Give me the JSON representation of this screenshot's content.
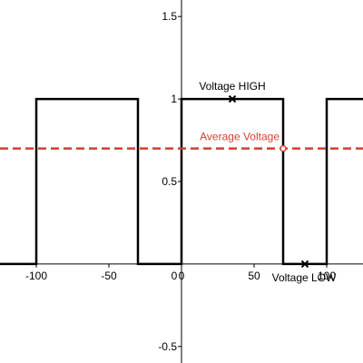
{
  "chart_data": {
    "type": "line",
    "title": "",
    "xlabel": "",
    "ylabel": "",
    "xlim": [
      -125,
      125
    ],
    "ylim": [
      -0.6,
      1.6
    ],
    "grid": false,
    "x_ticks": [
      -100,
      -50,
      0,
      50,
      100
    ],
    "x_tick_labels": [
      "-100",
      "-50",
      "0",
      "50",
      "100"
    ],
    "y_ticks": [
      -0.5,
      0.5,
      1,
      1.5
    ],
    "y_tick_labels": [
      "-0.5",
      "0.5",
      "1",
      "1.5"
    ],
    "series": [
      {
        "color": "#000000",
        "style": "solid",
        "x": [
          -125,
          -100,
          -100,
          -30,
          -30,
          0,
          0,
          70,
          70,
          100,
          100,
          125
        ],
        "y": [
          0,
          0,
          1,
          1,
          0,
          0,
          1,
          1,
          0,
          0,
          1,
          1
        ]
      },
      {
        "color": "#d43d31",
        "style": "dashed",
        "x": [
          -125,
          125
        ],
        "y": [
          0.7,
          0.7
        ]
      }
    ],
    "annotations": [
      {
        "text": "Voltage HIGH",
        "x": 35,
        "y": 1,
        "marker": "x",
        "color": "#000000",
        "label_pos": "above"
      },
      {
        "text": "Voltage LOW",
        "x": 85,
        "y": 0,
        "marker": "x",
        "color": "#000000",
        "label_pos": "below"
      },
      {
        "text": "Average Voltage",
        "x": 70,
        "y": 0.7,
        "marker": "o",
        "color": "#d43d31",
        "label_pos": "above-left"
      }
    ]
  }
}
